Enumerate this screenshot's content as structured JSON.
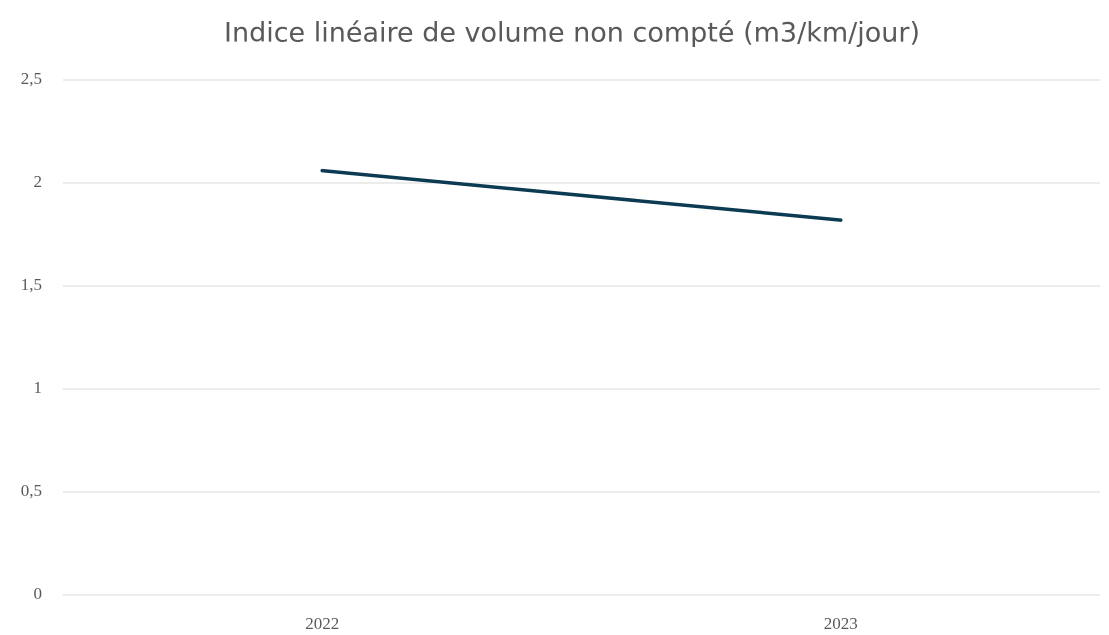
{
  "chart_data": {
    "type": "line",
    "title": "Indice linéaire de volume non compté (m3/km/jour)",
    "categories": [
      "2022",
      "2023"
    ],
    "series": [
      {
        "name": "Indice linéaire de volume non compté",
        "color": "#0b3a52",
        "values": [
          2.06,
          1.82
        ]
      }
    ],
    "ylim": [
      0,
      2.5
    ],
    "yticks": [
      0,
      {
        "value": 0.5,
        "label": "0,5"
      },
      1,
      {
        "value": 1.5,
        "label": "1,5"
      },
      2,
      {
        "value": 2.5,
        "label": "2,5"
      }
    ],
    "grid": true
  }
}
